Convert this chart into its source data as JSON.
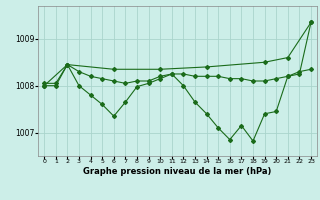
{
  "title": "Graphe pression niveau de la mer (hPa)",
  "background_color": "#cceee8",
  "grid_color": "#aad4cc",
  "line_color": "#1a6b1a",
  "marker_color": "#1a6b1a",
  "xlim": [
    -0.5,
    23.5
  ],
  "ylim": [
    1006.5,
    1009.7
  ],
  "yticks": [
    1007,
    1008,
    1009
  ],
  "xticks": [
    0,
    1,
    2,
    3,
    4,
    5,
    6,
    7,
    8,
    9,
    10,
    11,
    12,
    13,
    14,
    15,
    16,
    17,
    18,
    19,
    20,
    21,
    22,
    23
  ],
  "series1_x": [
    0,
    1,
    2,
    3,
    4,
    5,
    6,
    7,
    8,
    9,
    10,
    11,
    12,
    13,
    14,
    15,
    16,
    17,
    18,
    19,
    20,
    21,
    22,
    23
  ],
  "series1_y": [
    1008.0,
    1008.0,
    1008.45,
    1008.0,
    1007.8,
    1007.6,
    1007.35,
    1007.65,
    1007.98,
    1008.05,
    1008.15,
    1008.25,
    1008.0,
    1007.65,
    1007.4,
    1007.1,
    1006.85,
    1007.15,
    1006.82,
    1007.4,
    1007.45,
    1008.2,
    1008.25,
    1009.35
  ],
  "series2_x": [
    0,
    1,
    2,
    3,
    4,
    5,
    6,
    7,
    8,
    9,
    10,
    11,
    12,
    13,
    14,
    15,
    16,
    17,
    18,
    19,
    20,
    21,
    22,
    23
  ],
  "series2_y": [
    1008.05,
    1008.05,
    1008.45,
    1008.3,
    1008.2,
    1008.15,
    1008.1,
    1008.05,
    1008.1,
    1008.1,
    1008.2,
    1008.25,
    1008.25,
    1008.2,
    1008.2,
    1008.2,
    1008.15,
    1008.15,
    1008.1,
    1008.1,
    1008.15,
    1008.2,
    1008.3,
    1008.35
  ],
  "series3_x": [
    0,
    2,
    6,
    10,
    14,
    19,
    21,
    23
  ],
  "series3_y": [
    1008.0,
    1008.45,
    1008.35,
    1008.35,
    1008.4,
    1008.5,
    1008.6,
    1009.35
  ]
}
